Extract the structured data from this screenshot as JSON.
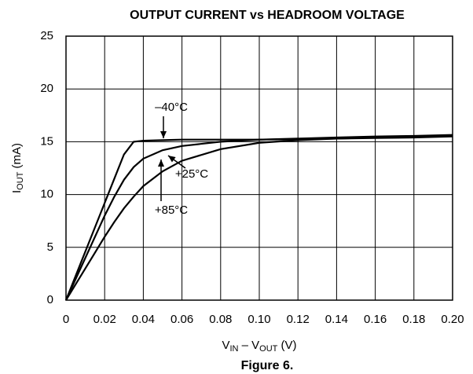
{
  "chart_data": {
    "type": "line",
    "title": "OUTPUT CURRENT vs HEADROOM VOLTAGE",
    "caption": "Figure 6.",
    "ylabel": [
      "I",
      "OUT",
      " (mA)"
    ],
    "xlabel": [
      "V",
      "IN",
      " – V",
      "OUT",
      " (V)"
    ],
    "x": [
      0,
      0.005,
      0.01,
      0.015,
      0.02,
      0.025,
      0.03,
      0.035,
      0.04,
      0.05,
      0.06,
      0.08,
      0.1,
      0.12,
      0.14,
      0.16,
      0.18,
      0.2
    ],
    "series": [
      {
        "name": "–40°C",
        "color": "#000000",
        "values": [
          0,
          2.3,
          4.6,
          6.9,
          9.2,
          11.5,
          13.8,
          15.0,
          15.1,
          15.15,
          15.2,
          15.2,
          15.2,
          15.25,
          15.3,
          15.35,
          15.4,
          15.5
        ]
      },
      {
        "name": "+25°C",
        "color": "#000000",
        "values": [
          0,
          2.0,
          4.0,
          6.0,
          8.0,
          9.8,
          11.4,
          12.6,
          13.4,
          14.2,
          14.6,
          15.0,
          15.2,
          15.3,
          15.4,
          15.5,
          15.55,
          15.65
        ]
      },
      {
        "name": "+85°C",
        "color": "#000000",
        "values": [
          0,
          1.5,
          3.0,
          4.5,
          6.0,
          7.4,
          8.7,
          9.8,
          10.8,
          12.2,
          13.2,
          14.3,
          14.9,
          15.15,
          15.3,
          15.4,
          15.5,
          15.6
        ]
      }
    ],
    "xlim": [
      0,
      0.2
    ],
    "xticks": [
      0,
      0.02,
      0.04,
      0.06,
      0.08,
      {
        "value": 0.1,
        "label": "0.10"
      },
      0.12,
      0.14,
      0.16,
      0.18,
      {
        "value": 0.2,
        "label": "0.20"
      }
    ],
    "ylim": [
      0,
      25
    ],
    "yticks": [
      0,
      5,
      10,
      15,
      20,
      25
    ],
    "grid": true
  }
}
